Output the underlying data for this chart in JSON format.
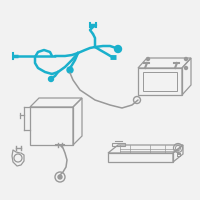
{
  "background_color": "#f2f2f2",
  "highlight_color": "#1ab0cc",
  "line_color": "#999999",
  "fig_bg": "#f2f2f2"
}
